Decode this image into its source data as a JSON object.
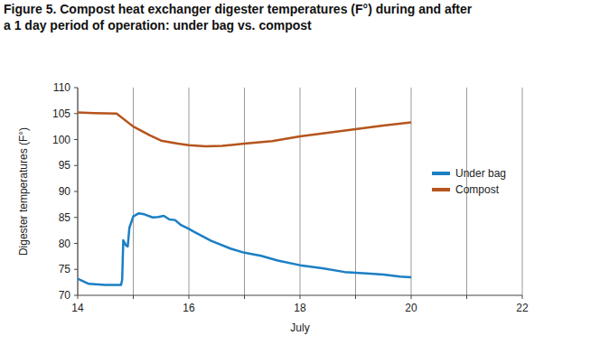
{
  "chart_data": {
    "type": "line",
    "title": "Figure 5. Compost heat exchanger digester temperatures (F°) during and after\na 1 day period of operation: under bag vs. compost",
    "x_label": "July",
    "y_label": "Digester temperatures (F°)",
    "xlim": [
      14,
      22
    ],
    "xticks": [
      14,
      {
        "value": 15,
        "label": null
      },
      16,
      {
        "value": 17,
        "label": null
      },
      18,
      {
        "value": 19,
        "label": null
      },
      20,
      {
        "value": 21,
        "label": null
      },
      22
    ],
    "ylim": [
      70,
      110
    ],
    "yticks": [
      70,
      75,
      80,
      85,
      90,
      95,
      100,
      105,
      110
    ],
    "grid": "x",
    "legend": "right",
    "series": [
      {
        "name": "Under bag",
        "color": "#1b7fc4",
        "x": [
          14,
          14.2,
          14.5,
          14.78,
          14.8,
          14.82,
          14.87,
          14.9,
          14.93,
          15.0,
          15.1,
          15.2,
          15.35,
          15.45,
          15.55,
          15.65,
          15.75,
          15.85,
          16.0,
          16.1,
          16.4,
          16.75,
          17.0,
          17.3,
          17.6,
          18.0,
          18.4,
          18.8,
          19.2,
          19.5,
          19.8,
          20.0
        ],
        "values": [
          73.2,
          72.2,
          72.0,
          72.0,
          73.0,
          80.6,
          79.6,
          79.4,
          83.0,
          85.2,
          85.8,
          85.6,
          85.0,
          85.1,
          85.3,
          84.6,
          84.5,
          83.6,
          82.8,
          82.2,
          80.5,
          79.0,
          78.2,
          77.6,
          76.7,
          75.8,
          75.2,
          74.5,
          74.2,
          74.0,
          73.6,
          73.5
        ]
      },
      {
        "name": "Compost",
        "color": "#b5541c",
        "x": [
          14,
          14.3,
          14.7,
          15.0,
          15.3,
          15.5,
          15.8,
          16.0,
          16.3,
          16.6,
          17.0,
          17.5,
          18.0,
          18.5,
          19.0,
          19.5,
          20.0
        ],
        "values": [
          105.2,
          105.1,
          105.0,
          102.5,
          100.8,
          99.8,
          99.2,
          98.9,
          98.7,
          98.8,
          99.2,
          99.7,
          100.6,
          101.3,
          102.0,
          102.7,
          103.3
        ]
      }
    ]
  }
}
